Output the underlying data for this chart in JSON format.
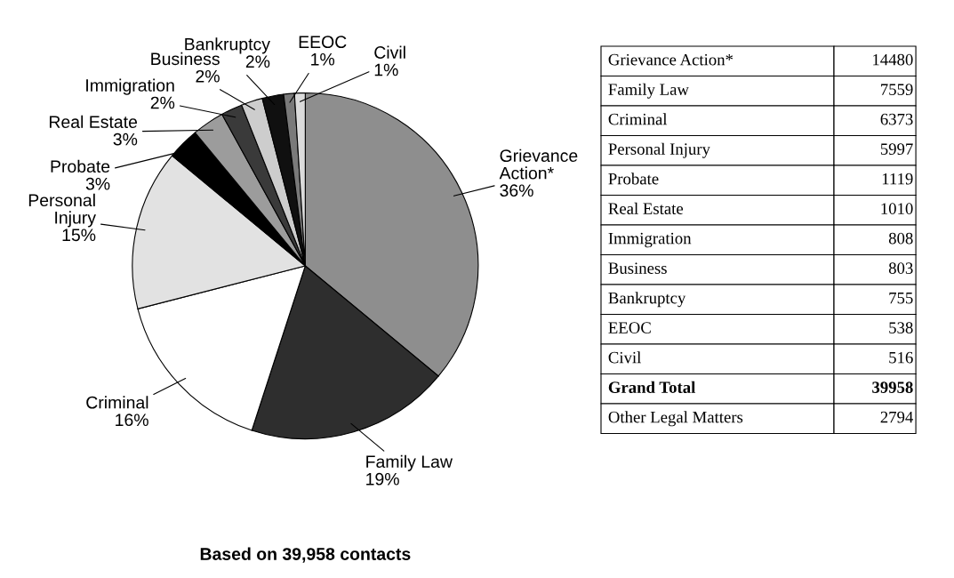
{
  "chart_data": [
    {
      "type": "pie",
      "categories": [
        "Grievance Action*",
        "Family Law",
        "Criminal",
        "Personal Injury",
        "Probate",
        "Real Estate",
        "Immigration",
        "Business",
        "Bankruptcy",
        "EEOC",
        "Civil"
      ],
      "values": [
        36,
        19,
        16,
        15,
        3,
        3,
        2,
        2,
        2,
        1,
        1
      ],
      "colors": [
        "#8e8e8e",
        "#2e2e2e",
        "#ffffff",
        "#e2e2e2",
        "#000000",
        "#9c9c9c",
        "#3a3a3a",
        "#cdcdcd",
        "#101010",
        "#7a7a7a",
        "#dcdcdc"
      ],
      "value_labels": [
        "36%",
        "19%",
        "16%",
        "15%",
        "3%",
        "3%",
        "2%",
        "2%",
        "2%",
        "1%",
        "1%"
      ],
      "annotations": [
        "Based on 39,958 contacts"
      ]
    },
    {
      "type": "other",
      "categories": [
        "Grievance Action*",
        "Family Law",
        "Criminal",
        "Personal Injury",
        "Probate",
        "Real Estate",
        "Immigration",
        "Business",
        "Bankruptcy",
        "EEOC",
        "Civil",
        "Grand Total",
        "Other Legal Matters"
      ],
      "values": [
        14480,
        7559,
        6373,
        5997,
        1119,
        1010,
        808,
        803,
        755,
        538,
        516,
        39958,
        2794
      ],
      "data_labels": true
    }
  ]
}
